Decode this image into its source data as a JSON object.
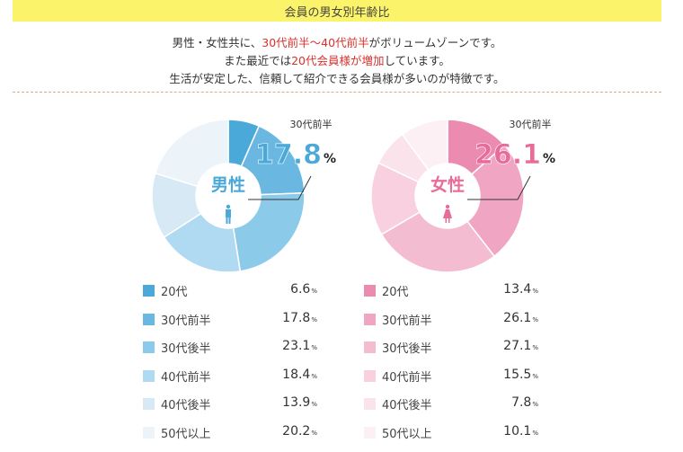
{
  "header": {
    "title": "会員の男女別年齢比"
  },
  "intro": {
    "line1_a": "男性・女性共に、",
    "line1_hl": "30代前半〜40代前半",
    "line1_b": "がボリュームゾーンです。",
    "line2_a": "また最近では",
    "line2_hl": "20代会員様が増加",
    "line2_b": "しています。",
    "line3": "生活が安定した、信頼して紹介できる会員様が多いのが特徴です。"
  },
  "colors": {
    "male": [
      "#4aa9d9",
      "#6ab8e2",
      "#8ccae9",
      "#b0daf1",
      "#d6e9f5",
      "#ecf4fa"
    ],
    "female": [
      "#ec8bb0",
      "#f0a6c2",
      "#f4bcd1",
      "#f8d0df",
      "#fbe3ec",
      "#fdf0f5"
    ],
    "male_accent": "#4aa9d9",
    "female_accent": "#e96b9a",
    "title_bar": "#fbf46a",
    "highlight": "#d9302c"
  },
  "chart_data": [
    {
      "type": "pie",
      "donut": true,
      "center_label": "男性",
      "center_icon": "male-person-icon",
      "callout": {
        "label": "30代前半",
        "value": "17.8",
        "unit": "%"
      },
      "categories": [
        "20代",
        "30代前半",
        "30代後半",
        "40代前半",
        "40代後半",
        "50代以上"
      ],
      "values": [
        6.6,
        17.8,
        23.1,
        18.4,
        13.9,
        20.2
      ],
      "value_labels": [
        "6.6",
        "17.8",
        "23.1",
        "18.4",
        "13.9",
        "20.2"
      ],
      "unit": "%"
    },
    {
      "type": "pie",
      "donut": true,
      "center_label": "女性",
      "center_icon": "female-person-icon",
      "callout": {
        "label": "30代前半",
        "value": "26.1",
        "unit": "%"
      },
      "categories": [
        "20代",
        "30代前半",
        "30代後半",
        "40代前半",
        "40代後半",
        "50代以上"
      ],
      "values": [
        13.4,
        26.1,
        27.1,
        15.5,
        7.8,
        10.1
      ],
      "value_labels": [
        "13.4",
        "26.1",
        "27.1",
        "15.5",
        "7.8",
        "10.1"
      ],
      "unit": "%"
    }
  ]
}
